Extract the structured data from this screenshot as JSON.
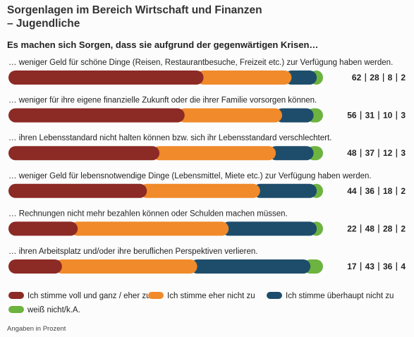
{
  "chart_data": {
    "type": "stacked-bar-horizontal",
    "title": [
      "Sorgenlagen im Bereich Wirtschaft und Finanzen",
      "– Jugendliche"
    ],
    "subtitle": "Es machen sich Sorgen, dass sie aufgrund der gegenwärtigen Krisen…",
    "categories": [
      "… weniger Geld für schöne Dinge (Reisen, Restaurantbesuche, Freizeit etc.) zur Verfügung haben werden.",
      "… weniger für ihre eigene finanzielle Zukunft oder die ihrer Familie vorsorgen können.",
      "… ihren Lebensstandard nicht halten können bzw. sich ihr Lebensstandard verschlechtert.",
      "… weniger Geld für lebensnotwendige Dinge (Lebensmittel, Miete etc.) zur Verfügung haben werden.",
      "… Rechnungen nicht mehr bezahlen können oder Schulden machen müssen.",
      "… ihren Arbeitsplatz und/oder ihre beruflichen Perspektiven verlieren."
    ],
    "series": [
      {
        "name": "Ich stimme voll und ganz / eher zu",
        "color": "#8c2a25",
        "values": [
          62,
          56,
          48,
          44,
          22,
          17
        ]
      },
      {
        "name": "Ich stimme eher nicht zu",
        "color": "#f08a2b",
        "values": [
          28,
          31,
          37,
          36,
          48,
          43
        ]
      },
      {
        "name": "Ich stimme überhaupt nicht zu",
        "color": "#1e4d6b",
        "values": [
          8,
          10,
          12,
          18,
          28,
          36
        ]
      },
      {
        "name": "weiß nicht/k.A.",
        "color": "#6db33f",
        "values": [
          2,
          3,
          3,
          2,
          2,
          4
        ]
      }
    ],
    "xlim": [
      0,
      100
    ],
    "note": "Angaben in Prozent"
  }
}
